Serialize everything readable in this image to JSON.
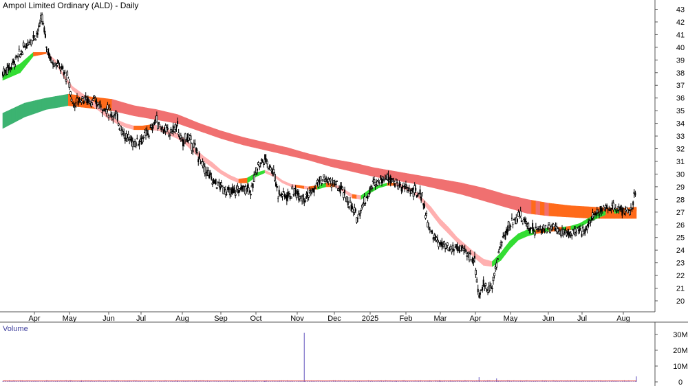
{
  "chart_title": "Ampol Limited Ordinary (ALD) - Daily",
  "colors": {
    "candle": "#000000",
    "short_bull": "#33dd33",
    "short_bear": "#ffb0b0",
    "short_transition": "#ff6a1a",
    "long_bull": "#3cb371",
    "long_bear": "#f07070",
    "long_transition": "#ff6a1a",
    "volume_bar": "#7a6ec8",
    "volume_line": "#e04040",
    "grid": "#bbbbbb"
  },
  "chart_data": [
    {
      "type": "candlestick",
      "title": "Ampol Limited Ordinary (ALD) - Daily",
      "ylim": [
        19,
        43
      ],
      "y_ticks": [
        20,
        21,
        22,
        23,
        24,
        25,
        26,
        27,
        28,
        29,
        30,
        31,
        32,
        33,
        34,
        35,
        36,
        37,
        38,
        39,
        40,
        41,
        42,
        43
      ],
      "x_tick_labels": [
        "Apr",
        "May",
        "Jun",
        "Jul",
        "Aug",
        "Sep",
        "Oct",
        "Nov",
        "Dec",
        "2025",
        "Feb",
        "Mar",
        "Apr",
        "May",
        "Jun",
        "Jul",
        "Aug"
      ],
      "price_path": [
        [
          0,
          38.0
        ],
        [
          2,
          38.6
        ],
        [
          4,
          39.5
        ],
        [
          6,
          40.5
        ],
        [
          8,
          41.2
        ],
        [
          9,
          42.3
        ],
        [
          10,
          40.2
        ],
        [
          11,
          39.0
        ],
        [
          13,
          38.5
        ],
        [
          15,
          37.5
        ],
        [
          16,
          35.5
        ],
        [
          18,
          36.0
        ],
        [
          20,
          35.8
        ],
        [
          22,
          35.5
        ],
        [
          24,
          35.0
        ],
        [
          26,
          34.5
        ],
        [
          28,
          33.0
        ],
        [
          30,
          32.5
        ],
        [
          32,
          32.8
        ],
        [
          34,
          33.5
        ],
        [
          35,
          34.3
        ],
        [
          36,
          33.8
        ],
        [
          38,
          33.2
        ],
        [
          40,
          33.8
        ],
        [
          41,
          32.3
        ],
        [
          42,
          33.0
        ],
        [
          44,
          32.0
        ],
        [
          46,
          30.5
        ],
        [
          48,
          29.5
        ],
        [
          50,
          29.0
        ],
        [
          52,
          28.5
        ],
        [
          54,
          28.8
        ],
        [
          56,
          29.0
        ],
        [
          57,
          28.6
        ],
        [
          58,
          30.5
        ],
        [
          60,
          31.2
        ],
        [
          62,
          30.2
        ],
        [
          63,
          28.5
        ],
        [
          65,
          28.3
        ],
        [
          67,
          28.6
        ],
        [
          69,
          28.2
        ],
        [
          71,
          28.6
        ],
        [
          72,
          29.3
        ],
        [
          74,
          29.6
        ],
        [
          76,
          29.2
        ],
        [
          78,
          28.5
        ],
        [
          80,
          27.2
        ],
        [
          81,
          26.6
        ],
        [
          83,
          28.0
        ],
        [
          85,
          29.3
        ],
        [
          87,
          29.7
        ],
        [
          89,
          29.8
        ],
        [
          90,
          29.2
        ],
        [
          92,
          28.9
        ],
        [
          94,
          28.6
        ],
        [
          96,
          28.3
        ],
        [
          97,
          26.5
        ],
        [
          98,
          25.3
        ],
        [
          100,
          24.5
        ],
        [
          102,
          24.0
        ],
        [
          104,
          24.2
        ],
        [
          106,
          23.8
        ],
        [
          108,
          23.2
        ],
        [
          109,
          20.3
        ],
        [
          110,
          21.2
        ],
        [
          112,
          21.0
        ],
        [
          113,
          23.0
        ],
        [
          114,
          24.5
        ],
        [
          116,
          26.0
        ],
        [
          118,
          26.8
        ],
        [
          120,
          26.0
        ],
        [
          122,
          25.5
        ],
        [
          124,
          25.7
        ],
        [
          126,
          25.9
        ],
        [
          128,
          25.4
        ],
        [
          130,
          25.3
        ],
        [
          132,
          25.4
        ],
        [
          134,
          26.0
        ],
        [
          136,
          27.1
        ],
        [
          138,
          27.4
        ],
        [
          140,
          27.3
        ],
        [
          142,
          27.2
        ],
        [
          144,
          27.0
        ],
        [
          145,
          29.2
        ]
      ],
      "short_band": [
        [
          0,
          37.4,
          38.0
        ],
        [
          4,
          38.0,
          38.7
        ],
        [
          7,
          39.3,
          39.6
        ],
        [
          10,
          39.5,
          39.6
        ],
        [
          12,
          38.8,
          39.0
        ],
        [
          14,
          37.6,
          37.8
        ],
        [
          16,
          36.6,
          36.9
        ],
        [
          18,
          36.0,
          36.4
        ],
        [
          20,
          35.5,
          35.9
        ],
        [
          22,
          35.0,
          35.4
        ],
        [
          24,
          34.4,
          34.8
        ],
        [
          26,
          34.0,
          34.3
        ],
        [
          28,
          33.7,
          34.0
        ],
        [
          30,
          33.5,
          33.8
        ],
        [
          32,
          33.5,
          33.8
        ],
        [
          34,
          33.5,
          33.9
        ],
        [
          36,
          33.4,
          33.8
        ],
        [
          38,
          33.1,
          33.5
        ],
        [
          40,
          32.8,
          33.2
        ],
        [
          42,
          32.3,
          32.7
        ],
        [
          44,
          31.6,
          32.0
        ],
        [
          46,
          31.0,
          31.4
        ],
        [
          48,
          30.5,
          30.9
        ],
        [
          50,
          30.0,
          30.3
        ],
        [
          52,
          29.6,
          29.9
        ],
        [
          54,
          29.3,
          29.6
        ],
        [
          56,
          29.3,
          29.7
        ],
        [
          58,
          29.8,
          30.1
        ],
        [
          60,
          30.1,
          30.3
        ],
        [
          62,
          29.8,
          30.0
        ],
        [
          64,
          29.3,
          29.5
        ],
        [
          66,
          29.0,
          29.2
        ],
        [
          68,
          28.9,
          29.1
        ],
        [
          70,
          28.8,
          29.0
        ],
        [
          72,
          28.8,
          29.1
        ],
        [
          74,
          29.0,
          29.3
        ],
        [
          76,
          29.0,
          29.2
        ],
        [
          78,
          28.6,
          28.8
        ],
        [
          80,
          28.1,
          28.4
        ],
        [
          82,
          28.0,
          28.3
        ],
        [
          84,
          28.5,
          28.8
        ],
        [
          86,
          28.9,
          29.1
        ],
        [
          88,
          29.1,
          29.3
        ],
        [
          90,
          29.1,
          29.3
        ],
        [
          92,
          28.8,
          29.1
        ],
        [
          94,
          28.5,
          28.8
        ],
        [
          96,
          27.8,
          28.1
        ],
        [
          98,
          26.9,
          27.4
        ],
        [
          100,
          26.0,
          26.5
        ],
        [
          102,
          25.3,
          25.8
        ],
        [
          104,
          24.6,
          25.0
        ],
        [
          106,
          24.0,
          24.4
        ],
        [
          108,
          23.4,
          23.8
        ],
        [
          110,
          22.8,
          23.3
        ],
        [
          112,
          22.7,
          23.1
        ],
        [
          114,
          23.2,
          23.8
        ],
        [
          116,
          24.1,
          24.7
        ],
        [
          118,
          24.8,
          25.3
        ],
        [
          120,
          25.1,
          25.6
        ],
        [
          122,
          25.3,
          25.6
        ],
        [
          124,
          25.4,
          25.7
        ],
        [
          126,
          25.5,
          25.8
        ],
        [
          128,
          25.5,
          25.8
        ],
        [
          130,
          25.6,
          25.9
        ],
        [
          132,
          25.8,
          26.1
        ],
        [
          134,
          26.2,
          26.5
        ],
        [
          136,
          26.5,
          26.9
        ],
        [
          138,
          26.8,
          27.1
        ],
        [
          140,
          26.9,
          27.2
        ],
        [
          142,
          27.0,
          27.3
        ],
        [
          145,
          27.1,
          27.4
        ]
      ],
      "long_band": [
        [
          0,
          33.6,
          34.8
        ],
        [
          5,
          34.5,
          35.6
        ],
        [
          10,
          35.1,
          36.0
        ],
        [
          15,
          35.4,
          36.3
        ],
        [
          20,
          35.2,
          36.1
        ],
        [
          25,
          35.0,
          35.9
        ],
        [
          30,
          34.6,
          35.4
        ],
        [
          35,
          34.3,
          35.1
        ],
        [
          40,
          34.0,
          34.7
        ],
        [
          45,
          33.4,
          34.0
        ],
        [
          50,
          32.8,
          33.4
        ],
        [
          55,
          32.3,
          32.9
        ],
        [
          60,
          31.9,
          32.5
        ],
        [
          65,
          31.5,
          32.1
        ],
        [
          70,
          31.1,
          31.6
        ],
        [
          75,
          30.6,
          31.2
        ],
        [
          80,
          30.2,
          30.9
        ],
        [
          85,
          29.8,
          30.5
        ],
        [
          90,
          29.5,
          30.2
        ],
        [
          95,
          29.2,
          29.9
        ],
        [
          100,
          28.8,
          29.6
        ],
        [
          105,
          28.4,
          29.3
        ],
        [
          110,
          27.9,
          28.9
        ],
        [
          115,
          27.4,
          28.4
        ],
        [
          120,
          26.9,
          28.0
        ],
        [
          125,
          26.7,
          27.7
        ],
        [
          130,
          26.6,
          27.5
        ],
        [
          135,
          26.5,
          27.4
        ],
        [
          140,
          26.5,
          27.3
        ],
        [
          145,
          26.5,
          27.3
        ]
      ],
      "volume_ylim": [
        0,
        33
      ],
      "volume_ticks": [
        "0",
        "10M",
        "20M",
        "30M"
      ],
      "volume_title": "Volume",
      "volume_spikes": [
        [
          69,
          31
        ],
        [
          18,
          0.8
        ],
        [
          90,
          0.7
        ],
        [
          109,
          3.0
        ],
        [
          113,
          2.2
        ],
        [
          145,
          3.5
        ],
        [
          40,
          1.0
        ],
        [
          60,
          0.9
        ],
        [
          100,
          1.2
        ]
      ]
    }
  ]
}
